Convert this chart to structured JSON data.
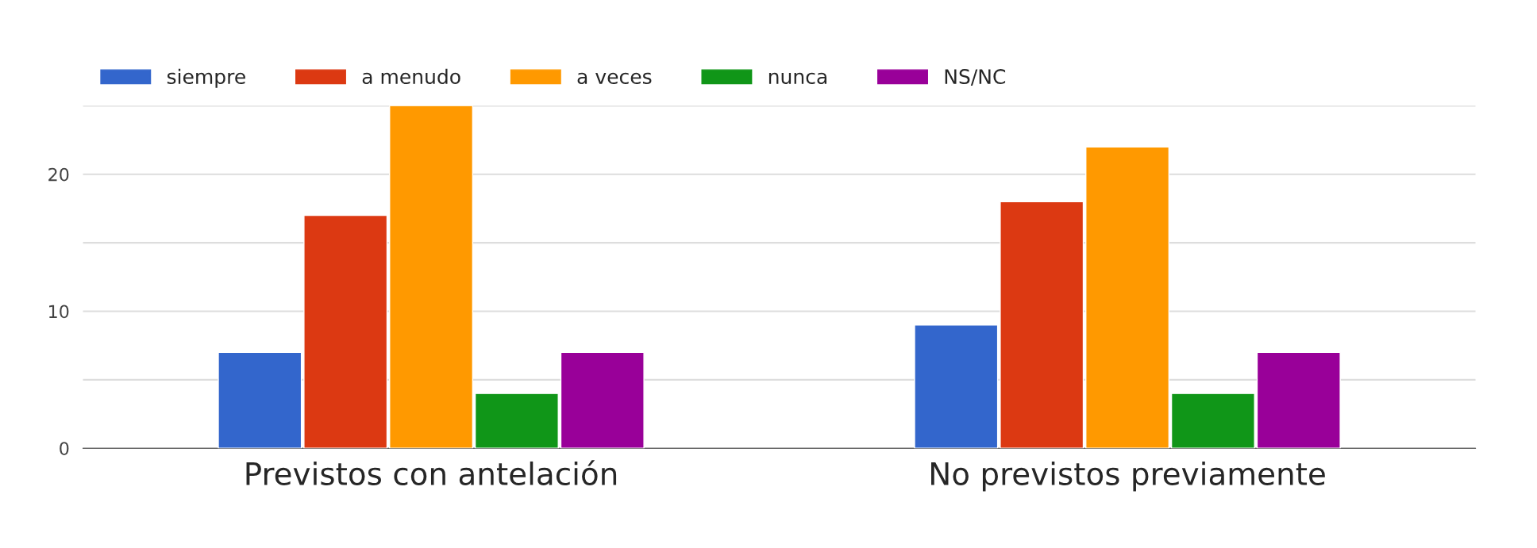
{
  "chart_data": {
    "type": "bar",
    "categories": [
      "Previstos con antelación",
      "No previstos previamente"
    ],
    "series": [
      {
        "name": "siempre",
        "color": "#3366cc",
        "values": [
          7,
          9
        ]
      },
      {
        "name": "a menudo",
        "color": "#dc3912",
        "values": [
          17,
          18
        ]
      },
      {
        "name": "a veces",
        "color": "#ff9900",
        "values": [
          25,
          22
        ]
      },
      {
        "name": "nunca",
        "color": "#109618",
        "values": [
          4,
          4
        ]
      },
      {
        "name": "NS/NC",
        "color": "#990099",
        "values": [
          7,
          7
        ]
      }
    ],
    "ylim": [
      0,
      25
    ],
    "yticks": [
      0,
      {
        "value": 5,
        "label": null
      },
      10,
      {
        "value": 15,
        "label": null
      },
      20,
      {
        "value": 25,
        "label": null
      }
    ],
    "grid": "y",
    "legend": "top left"
  }
}
